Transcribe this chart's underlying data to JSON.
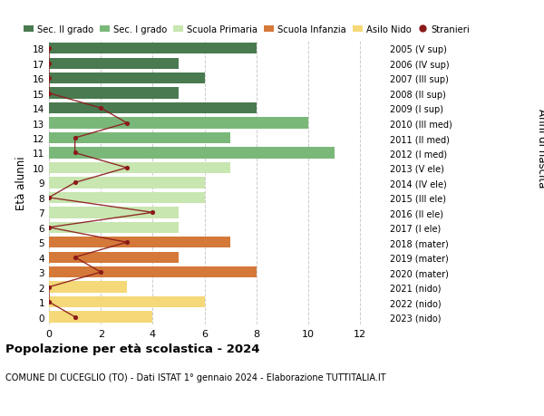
{
  "ages": [
    18,
    17,
    16,
    15,
    14,
    13,
    12,
    11,
    10,
    9,
    8,
    7,
    6,
    5,
    4,
    3,
    2,
    1,
    0
  ],
  "right_labels": [
    "2005 (V sup)",
    "2006 (IV sup)",
    "2007 (III sup)",
    "2008 (II sup)",
    "2009 (I sup)",
    "2010 (III med)",
    "2011 (II med)",
    "2012 (I med)",
    "2013 (V ele)",
    "2014 (IV ele)",
    "2015 (III ele)",
    "2016 (II ele)",
    "2017 (I ele)",
    "2018 (mater)",
    "2019 (mater)",
    "2020 (mater)",
    "2021 (nido)",
    "2022 (nido)",
    "2023 (nido)"
  ],
  "bar_values": [
    8,
    5,
    6,
    5,
    8,
    10,
    7,
    11,
    7,
    6,
    6,
    5,
    5,
    7,
    5,
    8,
    3,
    6,
    4
  ],
  "bar_colors": [
    "#4a7a50",
    "#4a7a50",
    "#4a7a50",
    "#4a7a50",
    "#4a7a50",
    "#7ab87a",
    "#7ab87a",
    "#7ab87a",
    "#c8e6b0",
    "#c8e6b0",
    "#c8e6b0",
    "#c8e6b0",
    "#c8e6b0",
    "#d4793a",
    "#d4793a",
    "#d4793a",
    "#f5d878",
    "#f5d878",
    "#f5d878"
  ],
  "stranieri_values": [
    0,
    0,
    0,
    0,
    2,
    3,
    1,
    1,
    3,
    1,
    0,
    4,
    0,
    3,
    1,
    2,
    0,
    0,
    1
  ],
  "stranieri_color": "#8b1a1a",
  "title": "Popolazione per età scolastica - 2024",
  "subtitle": "COMUNE DI CUCEGLIO (TO) - Dati ISTAT 1° gennaio 2024 - Elaborazione TUTTITALIA.IT",
  "ylabel": "Età alunni",
  "right_ylabel": "Anni di nascita",
  "xlim": [
    0,
    13
  ],
  "xticks": [
    0,
    2,
    4,
    6,
    8,
    10,
    12
  ],
  "legend_labels": [
    "Sec. II grado",
    "Sec. I grado",
    "Scuola Primaria",
    "Scuola Infanzia",
    "Asilo Nido",
    "Stranieri"
  ],
  "legend_colors": [
    "#4a7a50",
    "#7ab87a",
    "#c8e6b0",
    "#d4793a",
    "#f5d878",
    "#8b1a1a"
  ],
  "bg_color": "#ffffff",
  "grid_color": "#cccccc"
}
